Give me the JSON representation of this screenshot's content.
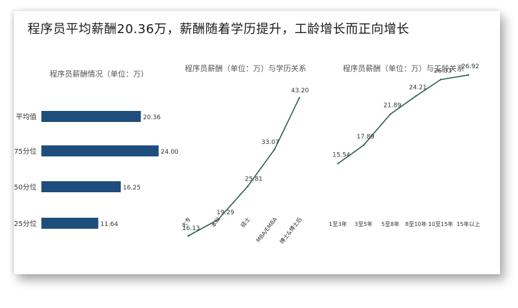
{
  "headline": "程序员平均薪酬20.36万，薪酬随着学历提升，工龄增长而正向增长",
  "colors": {
    "bar": "#1e4e7c",
    "line": "#2e5e4e",
    "text": "#333333"
  },
  "chart_data": [
    {
      "type": "bar",
      "orientation": "horizontal",
      "title": "程序员薪酬情况（单位：万）",
      "categories": [
        "平均值",
        "75分位",
        "50分位",
        "25分位"
      ],
      "values": [
        20.36,
        24.0,
        16.25,
        11.64
      ],
      "value_labels": [
        "20.36",
        "24.00",
        "16.25",
        "11.64"
      ],
      "xlim": [
        0,
        24
      ],
      "grid": false
    },
    {
      "type": "line",
      "title": "程序员薪酬（单位：万）与学历关系",
      "categories": [
        "大专",
        "本科",
        "硕士",
        "MBA/EMBA",
        "博士&博士后"
      ],
      "values": [
        16.13,
        19.29,
        25.81,
        33.07,
        43.2
      ],
      "value_labels": [
        "16.13",
        "19.29",
        "25.81",
        "33.07",
        "43.20"
      ],
      "ylim": [
        14,
        44
      ],
      "grid": false
    },
    {
      "type": "line",
      "title": "程序员薪酬（单位：万）与工龄关系",
      "categories": [
        "1至3年",
        "3至5年",
        "5至8年",
        "8至10年",
        "10至15年",
        "15年以上"
      ],
      "values": [
        15.54,
        17.89,
        21.89,
        24.21,
        26.33,
        26.92
      ],
      "value_labels": [
        "15.54",
        "17.89",
        "21.89",
        "24.21",
        "26.33",
        "26.92"
      ],
      "ylim": [
        10,
        28
      ],
      "grid": false
    }
  ]
}
